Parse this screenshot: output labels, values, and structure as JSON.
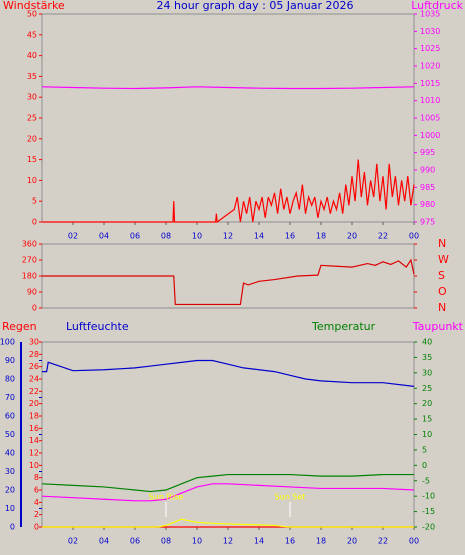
{
  "chart_data": [
    {
      "type": "line",
      "title": "24 hour graph day : 05 Januar 2026",
      "xlim": [
        0,
        24
      ],
      "xticks": [
        {
          "value": 2,
          "label": "02"
        },
        {
          "value": 4,
          "label": "04"
        },
        {
          "value": 6,
          "label": "06"
        },
        {
          "value": 8,
          "label": "08"
        },
        10,
        12,
        14,
        16,
        18,
        20,
        22,
        {
          "value": 24,
          "label": "00"
        }
      ],
      "axes": [
        {
          "color": "#ff0000",
          "side": "left",
          "lim": [
            0,
            50
          ],
          "ticks": [
            0,
            5,
            10,
            15,
            20,
            25,
            30,
            35,
            40,
            45,
            50
          ]
        },
        {
          "color": "#ff00ff",
          "side": "right",
          "lim": [
            975,
            1035
          ],
          "ticks": [
            975,
            980,
            985,
            990,
            995,
            1000,
            1005,
            1010,
            1015,
            1020,
            1025,
            1030,
            1035
          ]
        }
      ],
      "series": [
        {
          "name": "Windstärke",
          "color": "#ff0000",
          "axis": 0,
          "x": [
            0,
            8.45,
            8.5,
            8.55,
            11.2,
            11.25,
            11.3,
            12.4,
            12.6,
            12.8,
            13.0,
            13.2,
            13.4,
            13.6,
            13.8,
            14.0,
            14.2,
            14.4,
            14.6,
            14.8,
            15.0,
            15.2,
            15.4,
            15.6,
            15.8,
            16.0,
            16.2,
            16.4,
            16.6,
            16.8,
            17.0,
            17.2,
            17.4,
            17.6,
            17.8,
            18.0,
            18.2,
            18.4,
            18.6,
            18.8,
            19.0,
            19.2,
            19.4,
            19.6,
            19.8,
            20.0,
            20.2,
            20.4,
            20.6,
            20.8,
            21.0,
            21.2,
            21.4,
            21.6,
            21.8,
            22.0,
            22.2,
            22.4,
            22.6,
            22.8,
            23.0,
            23.2,
            23.4,
            23.6,
            23.8,
            24.0
          ],
          "values": [
            0,
            0,
            5,
            0,
            0,
            2,
            0,
            3,
            6,
            0,
            5,
            2,
            6,
            0,
            5,
            3,
            6,
            1,
            6,
            4,
            7,
            2,
            8,
            3,
            6,
            2,
            5,
            7,
            3,
            9,
            2,
            6,
            4,
            6,
            1,
            5,
            3,
            6,
            2,
            5,
            3,
            7,
            2,
            9,
            4,
            11,
            5,
            15,
            6,
            12,
            4,
            10,
            6,
            14,
            5,
            11,
            3,
            14,
            6,
            11,
            4,
            10,
            5,
            11,
            4,
            9
          ]
        },
        {
          "name": "Luftdruck",
          "color": "#ff00ff",
          "axis": 1,
          "x": [
            0,
            2,
            4,
            6,
            8,
            10,
            12,
            14,
            16,
            18,
            20,
            22,
            24
          ],
          "values": [
            1014,
            1013.8,
            1013.6,
            1013.5,
            1013.7,
            1014,
            1013.8,
            1013.6,
            1013.5,
            1013.5,
            1013.6,
            1013.8,
            1014
          ]
        }
      ]
    },
    {
      "type": "line",
      "xlim": [
        0,
        24
      ],
      "axes": [
        {
          "color": "#ff0000",
          "side": "left",
          "lim": [
            0,
            360
          ],
          "ticks": [
            0,
            90,
            180,
            270,
            360
          ]
        },
        {
          "color": "#ff0000",
          "side": "right",
          "lim": [
            0,
            360
          ],
          "ticks": [
            {
              "value": 0,
              "label": "N"
            },
            {
              "value": 90,
              "label": "O"
            },
            {
              "value": 180,
              "label": "S"
            },
            {
              "value": 270,
              "label": "W"
            },
            {
              "value": 360,
              "label": "N"
            }
          ]
        }
      ],
      "series": [
        {
          "color": "#dd0000",
          "axis": 0,
          "x": [
            0,
            8.5,
            8.6,
            12.8,
            13.0,
            13.3,
            14,
            15,
            16.5,
            17.8,
            18,
            19,
            20,
            21,
            21.5,
            22,
            22.5,
            23,
            23.5,
            23.8,
            24
          ],
          "values": [
            180,
            180,
            20,
            20,
            140,
            130,
            150,
            160,
            180,
            185,
            240,
            235,
            230,
            250,
            240,
            260,
            245,
            265,
            230,
            270,
            190
          ]
        }
      ]
    },
    {
      "type": "line",
      "xlim": [
        0,
        24
      ],
      "xticks": [
        {
          "value": 2,
          "label": "02"
        },
        {
          "value": 4,
          "label": "04"
        },
        {
          "value": 6,
          "label": "06"
        },
        {
          "value": 8,
          "label": "08"
        },
        10,
        12,
        14,
        16,
        18,
        20,
        22,
        {
          "value": 24,
          "label": "00"
        }
      ],
      "axes": [
        {
          "color": "#0000cc",
          "side": "left",
          "lim": [
            0,
            100
          ],
          "ticks": [
            0,
            10,
            20,
            30,
            40,
            50,
            60,
            70,
            80,
            90,
            100
          ]
        },
        {
          "color": "#ff0000",
          "side": "left",
          "lim": [
            0,
            30
          ],
          "ticks": [
            0,
            2,
            4,
            6,
            8,
            10,
            12,
            14,
            16,
            18,
            20,
            22,
            24,
            26,
            28,
            30
          ]
        },
        {
          "color": "#008000",
          "side": "right",
          "lim": [
            -20,
            40
          ],
          "ticks": [
            -20,
            -15,
            -10,
            -5,
            0,
            5,
            10,
            15,
            20,
            25,
            30,
            35,
            40
          ]
        }
      ],
      "annotations": [
        {
          "text": "Sun Rise",
          "x": 8
        },
        {
          "text": "Sun Set",
          "x": 16
        }
      ],
      "series": [
        {
          "name": "Regen",
          "color": "#ff0000",
          "axis": 1,
          "x": [
            0,
            24
          ],
          "values": [
            0,
            0
          ]
        },
        {
          "name": "Luftfeuchte",
          "color": "#0000cc",
          "axis": 0,
          "x": [
            0,
            0.3,
            0.4,
            2,
            4,
            6,
            7,
            8,
            9,
            10,
            11,
            12,
            13,
            14,
            15,
            16,
            17,
            18,
            20,
            22,
            24
          ],
          "values": [
            84,
            84,
            89,
            84.5,
            85,
            86,
            87,
            88,
            89,
            90,
            90,
            88,
            86,
            85,
            84,
            82,
            80,
            79,
            78,
            78,
            76
          ]
        },
        {
          "name": "Temperatur",
          "color": "#008000",
          "axis": 2,
          "x": [
            0,
            2,
            4,
            6,
            7,
            8,
            9,
            10,
            11,
            12,
            14,
            16,
            18,
            20,
            22,
            24
          ],
          "values": [
            -6,
            -6.5,
            -7,
            -8,
            -8.5,
            -8,
            -6,
            -4,
            -3.5,
            -3,
            -3,
            -3,
            -3.5,
            -3.5,
            -3,
            -3
          ]
        },
        {
          "name": "Taupunkt",
          "color": "#ff00ff",
          "axis": 2,
          "x": [
            0,
            2,
            4,
            6,
            7,
            8,
            9,
            10,
            11,
            12,
            14,
            16,
            18,
            20,
            22,
            24
          ],
          "values": [
            -10,
            -10.5,
            -11,
            -11.5,
            -11.5,
            -11,
            -9,
            -7,
            -6,
            -6,
            -6.5,
            -7,
            -7.5,
            -7.5,
            -7.5,
            -8
          ]
        },
        {
          "color": "#ffff00",
          "axis": 2,
          "x": [
            0,
            7.5,
            8,
            8.5,
            9,
            9.5,
            10,
            11,
            12,
            13,
            14,
            15,
            15.5,
            16,
            24
          ],
          "values": [
            -20,
            -20,
            -19.5,
            -18.5,
            -17.5,
            -18,
            -18.5,
            -18.8,
            -19,
            -19.2,
            -19.3,
            -19.5,
            -19.8,
            -20,
            -20
          ]
        }
      ]
    }
  ]
}
